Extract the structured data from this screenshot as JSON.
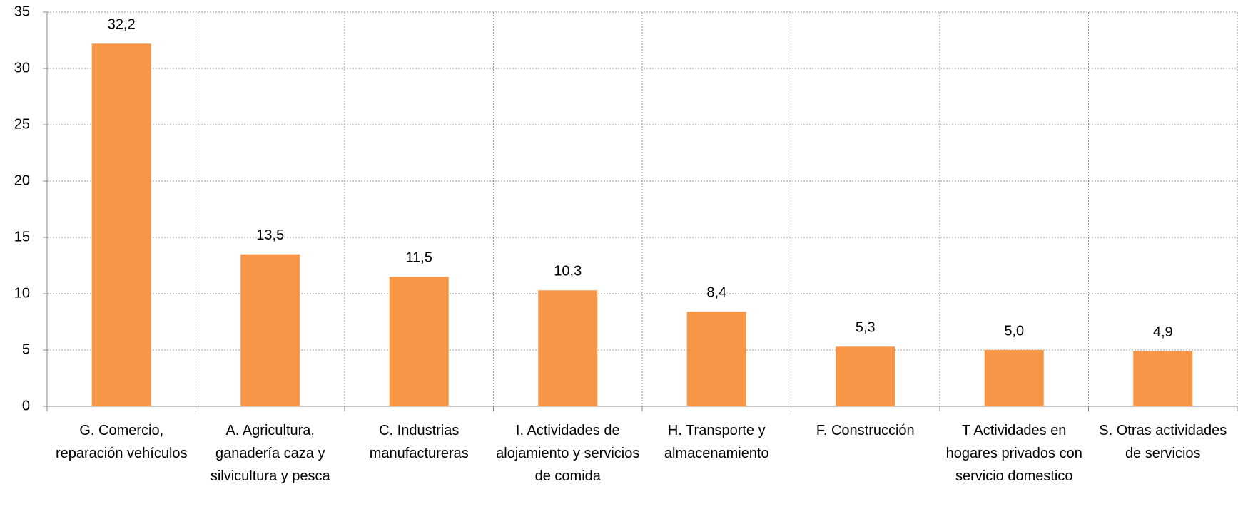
{
  "chart_data": {
    "type": "bar",
    "categories": [
      "G. Comercio, reparación vehículos",
      "A. Agricultura, ganadería caza y silvicultura y pesca",
      "C. Industrias manufactureras",
      "I. Actividades de alojamiento y servicios de comida",
      "H. Transporte y almacenamiento",
      "F. Construcción",
      "T  Actividades en hogares privados con servicio domestico",
      "S. Otras actividades de servicios"
    ],
    "values": [
      32.2,
      13.5,
      11.5,
      10.3,
      8.4,
      5.3,
      5.0,
      4.9
    ],
    "value_labels": [
      "32,2",
      "13,5",
      "11,5",
      "10,3",
      "8,4",
      "5,3",
      "5,0",
      "4,9"
    ],
    "color": "#f79646",
    "ylim": [
      0,
      35
    ],
    "yticks": [
      0,
      5,
      10,
      15,
      20,
      25,
      30,
      35
    ],
    "grid": true
  }
}
